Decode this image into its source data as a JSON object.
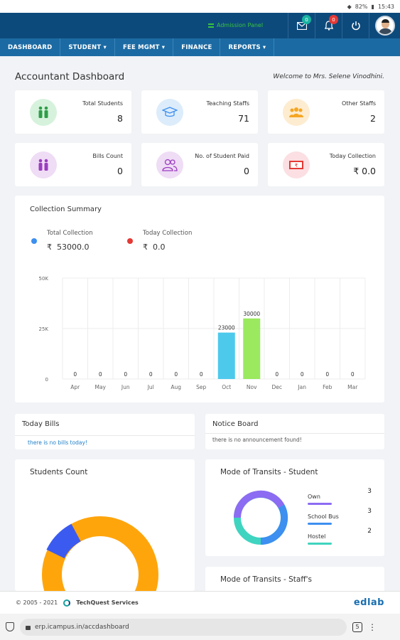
{
  "status": {
    "battery": "82%",
    "time": "15:43"
  },
  "topbar": {
    "admission_label": "Admission Panel",
    "mail_badge": "0",
    "bell_badge": "0"
  },
  "nav": [
    "DASHBOARD",
    "STUDENT ▾",
    "FEE MGMT ▾",
    "FINANCE",
    "REPORTS ▾"
  ],
  "header": {
    "title": "Accountant Dashboard",
    "welcome": "Welcome to Mrs. Selene Vinodhini."
  },
  "stats": [
    {
      "label": "Total Students",
      "value": "8",
      "color": "#d6f2dc"
    },
    {
      "label": "Teaching Staffs",
      "value": "71",
      "color": "#dcecfb"
    },
    {
      "label": "Other Staffs",
      "value": "2",
      "color": "#fdecd0"
    },
    {
      "label": "Bills Count",
      "value": "0",
      "color": "#efdcf5"
    },
    {
      "label": "No. of Student Paid",
      "value": "0",
      "color": "#efdcf5"
    },
    {
      "label": "Today Collection",
      "value": "₹ 0.0",
      "color": "#fbdfe2"
    }
  ],
  "collection": {
    "title": "Collection Summary",
    "total_label": "Total Collection",
    "total_value": "53000.0",
    "today_label": "Today Collection",
    "today_value": "0.0",
    "currency": "₹"
  },
  "chart_data": {
    "type": "bar",
    "categories": [
      "Apr",
      "May",
      "Jun",
      "Jul",
      "Aug",
      "Sep",
      "Oct",
      "Nov",
      "Dec",
      "Jan",
      "Feb",
      "Mar"
    ],
    "values": [
      0,
      0,
      0,
      0,
      0,
      0,
      23000,
      30000,
      0,
      0,
      0,
      0
    ],
    "ytick_labels": [
      "0",
      "25K",
      "50K"
    ],
    "ylim": [
      0,
      50000
    ],
    "bar_colors": [
      "#4dc9ec",
      "#4dc9ec",
      "#4dc9ec",
      "#4dc9ec",
      "#4dc9ec",
      "#4dc9ec",
      "#4dc9ec",
      "#9ae95e",
      "#4dc9ec",
      "#4dc9ec",
      "#4dc9ec",
      "#4dc9ec"
    ],
    "grid": true
  },
  "today_bills": {
    "title": "Today Bills",
    "empty": "there is no bills today!"
  },
  "notice_board": {
    "title": "Notice Board",
    "empty": "there is no announcement found!"
  },
  "students_count": {
    "title": "Students Count"
  },
  "transit_student": {
    "title": "Mode of Transits - Student",
    "items": [
      {
        "label": "Own",
        "value": "3",
        "color": "#8c6cf2"
      },
      {
        "label": "School Bus",
        "value": "3",
        "color": "#3d8ff0"
      },
      {
        "label": "Hostel",
        "value": "2",
        "color": "#3fd4c0"
      }
    ]
  },
  "transit_staff": {
    "title": "Mode of Transits - Staff's"
  },
  "footer": {
    "copyright": "© 2005 - 2021",
    "company": "TechQuest Services",
    "brand": "edlab"
  },
  "browser": {
    "url": "erp.icampus.in/accdashboard",
    "tabs": "5"
  }
}
